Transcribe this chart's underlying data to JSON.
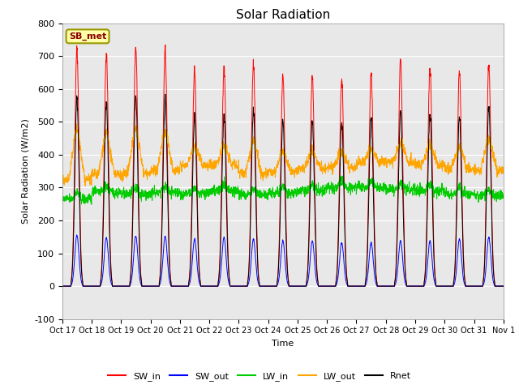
{
  "title": "Solar Radiation",
  "ylabel": "Solar Radiation (W/m2)",
  "xlabel": "Time",
  "ylim": [
    -100,
    800
  ],
  "yticks": [
    -100,
    0,
    100,
    200,
    300,
    400,
    500,
    600,
    700,
    800
  ],
  "plot_bg_color": "#e8e8e8",
  "station_label": "SB_met",
  "legend_entries": [
    "SW_in",
    "SW_out",
    "LW_in",
    "LW_out",
    "Rnet"
  ],
  "line_colors": [
    "#ff0000",
    "#0000ff",
    "#00cc00",
    "#ffa500",
    "#000000"
  ],
  "xtick_labels": [
    "Oct 17",
    "Oct 18",
    "Oct 19",
    "Oct 20",
    "Oct 21",
    "Oct 22",
    "Oct 23",
    "Oct 24",
    "Oct 25",
    "Oct 26",
    "Oct 27",
    "Oct 28",
    "Oct 29",
    "Oct 30",
    "Oct 31",
    "Nov 1"
  ],
  "n_days": 15,
  "pts_per_day": 144,
  "sw_in_peaks": [
    720,
    710,
    725,
    720,
    660,
    665,
    675,
    640,
    640,
    635,
    650,
    690,
    670,
    658,
    675
  ],
  "sw_out_peaks": [
    155,
    148,
    153,
    152,
    143,
    148,
    143,
    138,
    138,
    132,
    132,
    138,
    138,
    143,
    148
  ],
  "rnet_peaks": [
    570,
    562,
    578,
    572,
    520,
    520,
    532,
    503,
    503,
    502,
    513,
    533,
    528,
    518,
    548
  ],
  "lw_in_base": [
    265,
    285,
    280,
    285,
    280,
    290,
    280,
    285,
    290,
    300,
    300,
    295,
    290,
    280,
    275
  ],
  "lw_out_base": [
    325,
    340,
    342,
    352,
    368,
    368,
    343,
    348,
    358,
    362,
    378,
    378,
    368,
    358,
    352
  ],
  "lw_out_spike": [
    480,
    465,
    478,
    470,
    425,
    425,
    440,
    410,
    410,
    408,
    415,
    435,
    430,
    420,
    450
  ]
}
